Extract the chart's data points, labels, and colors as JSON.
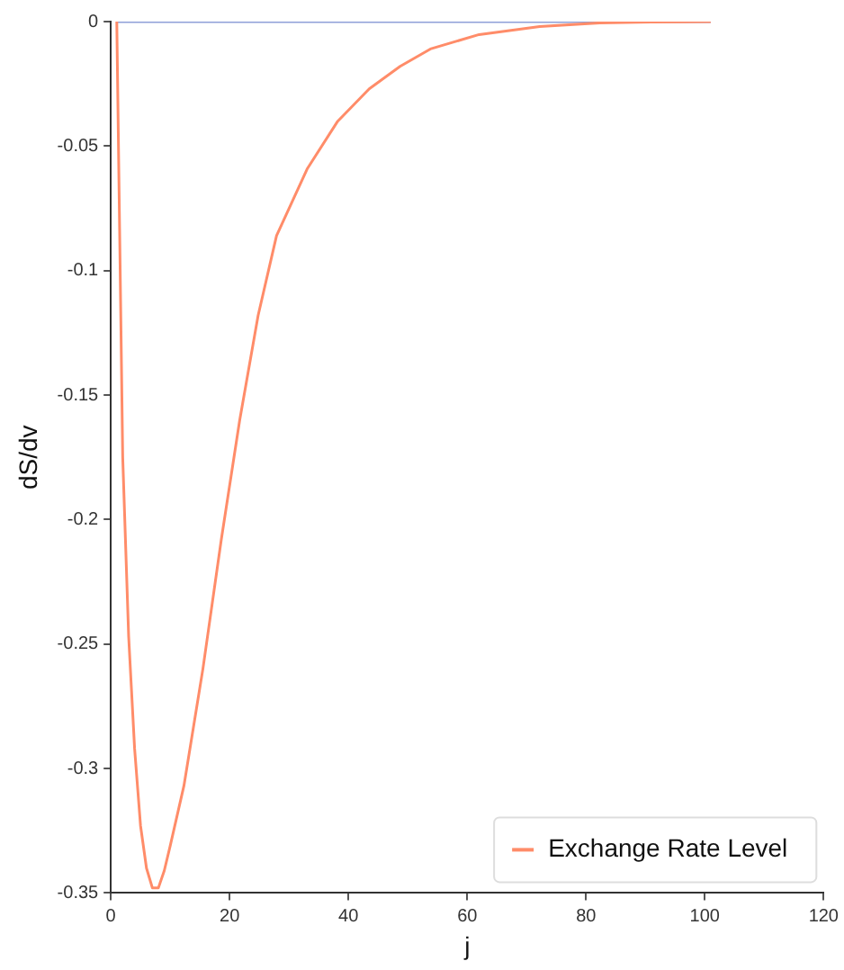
{
  "chart_data": {
    "type": "line",
    "xlabel": "j",
    "ylabel": "dS/dv",
    "xlim": [
      0,
      120
    ],
    "xticks": [
      0,
      20,
      40,
      60,
      80,
      100,
      120
    ],
    "ylim": [
      -0.35,
      0
    ],
    "yticks": [
      -0.35,
      -0.3,
      -0.25,
      -0.2,
      -0.15,
      -0.1,
      -0.05,
      0
    ],
    "grid": false,
    "legend": "bottom right",
    "marker": "none",
    "line_style": "solid",
    "series": [
      {
        "color": "#8fa0d8",
        "x": [
          1,
          101
        ],
        "values": [
          0,
          0
        ]
      },
      {
        "name": "Exchange Rate Level",
        "color": "#ff8c69",
        "x": [
          1,
          2,
          3,
          4,
          5,
          6,
          7,
          8,
          9,
          10,
          12.3,
          15.5,
          18.6,
          21.7,
          24.8,
          27.9,
          33.1,
          38.2,
          43.5,
          48.7,
          53.8,
          62,
          72.2,
          82.3,
          91,
          101
        ],
        "values": [
          0,
          -0.175,
          -0.247,
          -0.292,
          -0.323,
          -0.34,
          -0.348,
          -0.348,
          -0.341,
          -0.331,
          -0.307,
          -0.26,
          -0.208,
          -0.16,
          -0.118,
          -0.086,
          -0.059,
          -0.04,
          -0.027,
          -0.018,
          -0.011,
          -0.0052,
          -0.002,
          -0.0005,
          -0.0002,
          0
        ]
      }
    ]
  }
}
